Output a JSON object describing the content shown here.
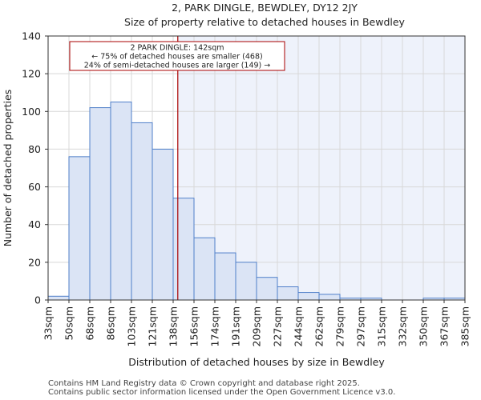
{
  "chart_data": {
    "type": "bar",
    "title": "2, PARK DINGLE, BEWDLEY, DY12 2JY",
    "subtitle": "Size of property relative to detached houses in Bewdley",
    "xlabel": "Distribution of detached houses by size in Bewdley",
    "ylabel": "Number of detached properties",
    "ylim": [
      0,
      140
    ],
    "yticks": [
      0,
      20,
      40,
      60,
      80,
      100,
      120,
      140
    ],
    "bin_edges": [
      "33sqm",
      "50sqm",
      "68sqm",
      "86sqm",
      "103sqm",
      "121sqm",
      "138sqm",
      "156sqm",
      "174sqm",
      "191sqm",
      "209sqm",
      "227sqm",
      "244sqm",
      "262sqm",
      "279sqm",
      "297sqm",
      "315sqm",
      "332sqm",
      "350sqm",
      "367sqm",
      "385sqm"
    ],
    "values": [
      2,
      76,
      102,
      105,
      94,
      80,
      54,
      33,
      25,
      20,
      12,
      7,
      4,
      3,
      1,
      1,
      0,
      0,
      1,
      1
    ],
    "marker": {
      "value_sqm": 142,
      "annotation_lines": [
        "2 PARK DINGLE: 142sqm",
        "← 75% of detached houses are smaller (468)",
        "24% of semi-detached houses are larger (149) →"
      ],
      "color": "#aa0000"
    },
    "colors": {
      "bar_fill": "#dbe4f5",
      "bar_edge": "#4f7fc9",
      "grid": "#d8d8d8",
      "highlight_bg": "#eef2fb"
    }
  },
  "footer": {
    "line1": "Contains HM Land Registry data © Crown copyright and database right 2025.",
    "line2": "Contains public sector information licensed under the Open Government Licence v3.0."
  }
}
